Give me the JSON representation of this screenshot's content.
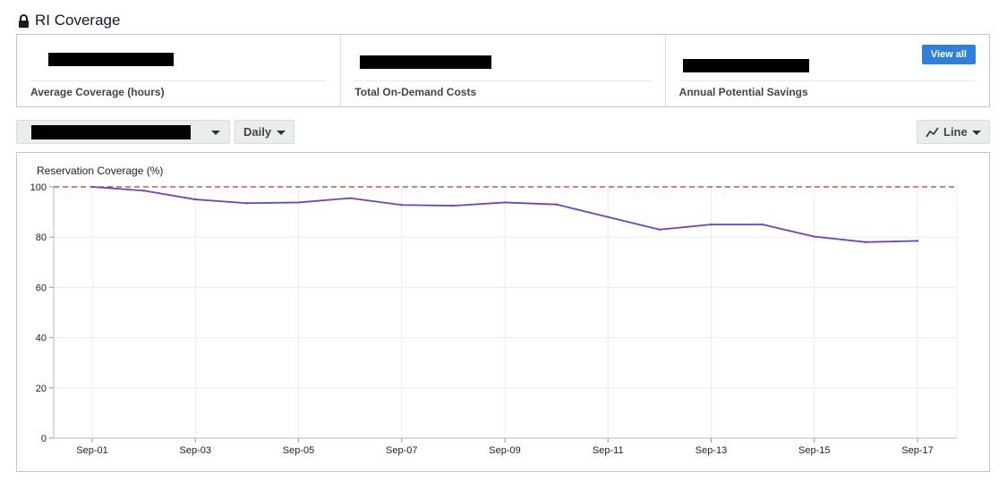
{
  "header": {
    "title": "RI Coverage",
    "icon": "lock-icon"
  },
  "summary": {
    "cells": [
      {
        "label": "Average Coverage (hours)"
      },
      {
        "label": "Total On-Demand Costs"
      },
      {
        "label": "Annual Potential Savings"
      }
    ],
    "view_all_label": "View all",
    "accent_color": "#2f80db"
  },
  "controls": {
    "granularity_label": "Daily",
    "chart_type_label": "Line",
    "chart_type_icon": "line-chart-icon"
  },
  "chart_data": {
    "type": "line",
    "ylabel": "Reservation Coverage (%)",
    "ylim": [
      0,
      100
    ],
    "yticks": [
      0,
      20,
      40,
      60,
      80,
      100
    ],
    "x": [
      "Sep-01",
      "Sep-02",
      "Sep-03",
      "Sep-04",
      "Sep-05",
      "Sep-06",
      "Sep-07",
      "Sep-08",
      "Sep-09",
      "Sep-10",
      "Sep-11",
      "Sep-12",
      "Sep-13",
      "Sep-14",
      "Sep-15",
      "Sep-16",
      "Sep-17"
    ],
    "xtick_labels": [
      "Sep-01",
      "Sep-03",
      "Sep-05",
      "Sep-07",
      "Sep-09",
      "Sep-11",
      "Sep-13",
      "Sep-15",
      "Sep-17"
    ],
    "series": [
      {
        "values": [
          100,
          98.5,
          95,
          93.5,
          93.8,
          95.5,
          92.8,
          92.5,
          93.8,
          93,
          88,
          83,
          85,
          85,
          80.2,
          78,
          78.5
        ],
        "color": "#6f42c1"
      }
    ],
    "reference_line": {
      "value": 100,
      "color": "#c0392b",
      "style": "dashed"
    },
    "grid": true
  }
}
